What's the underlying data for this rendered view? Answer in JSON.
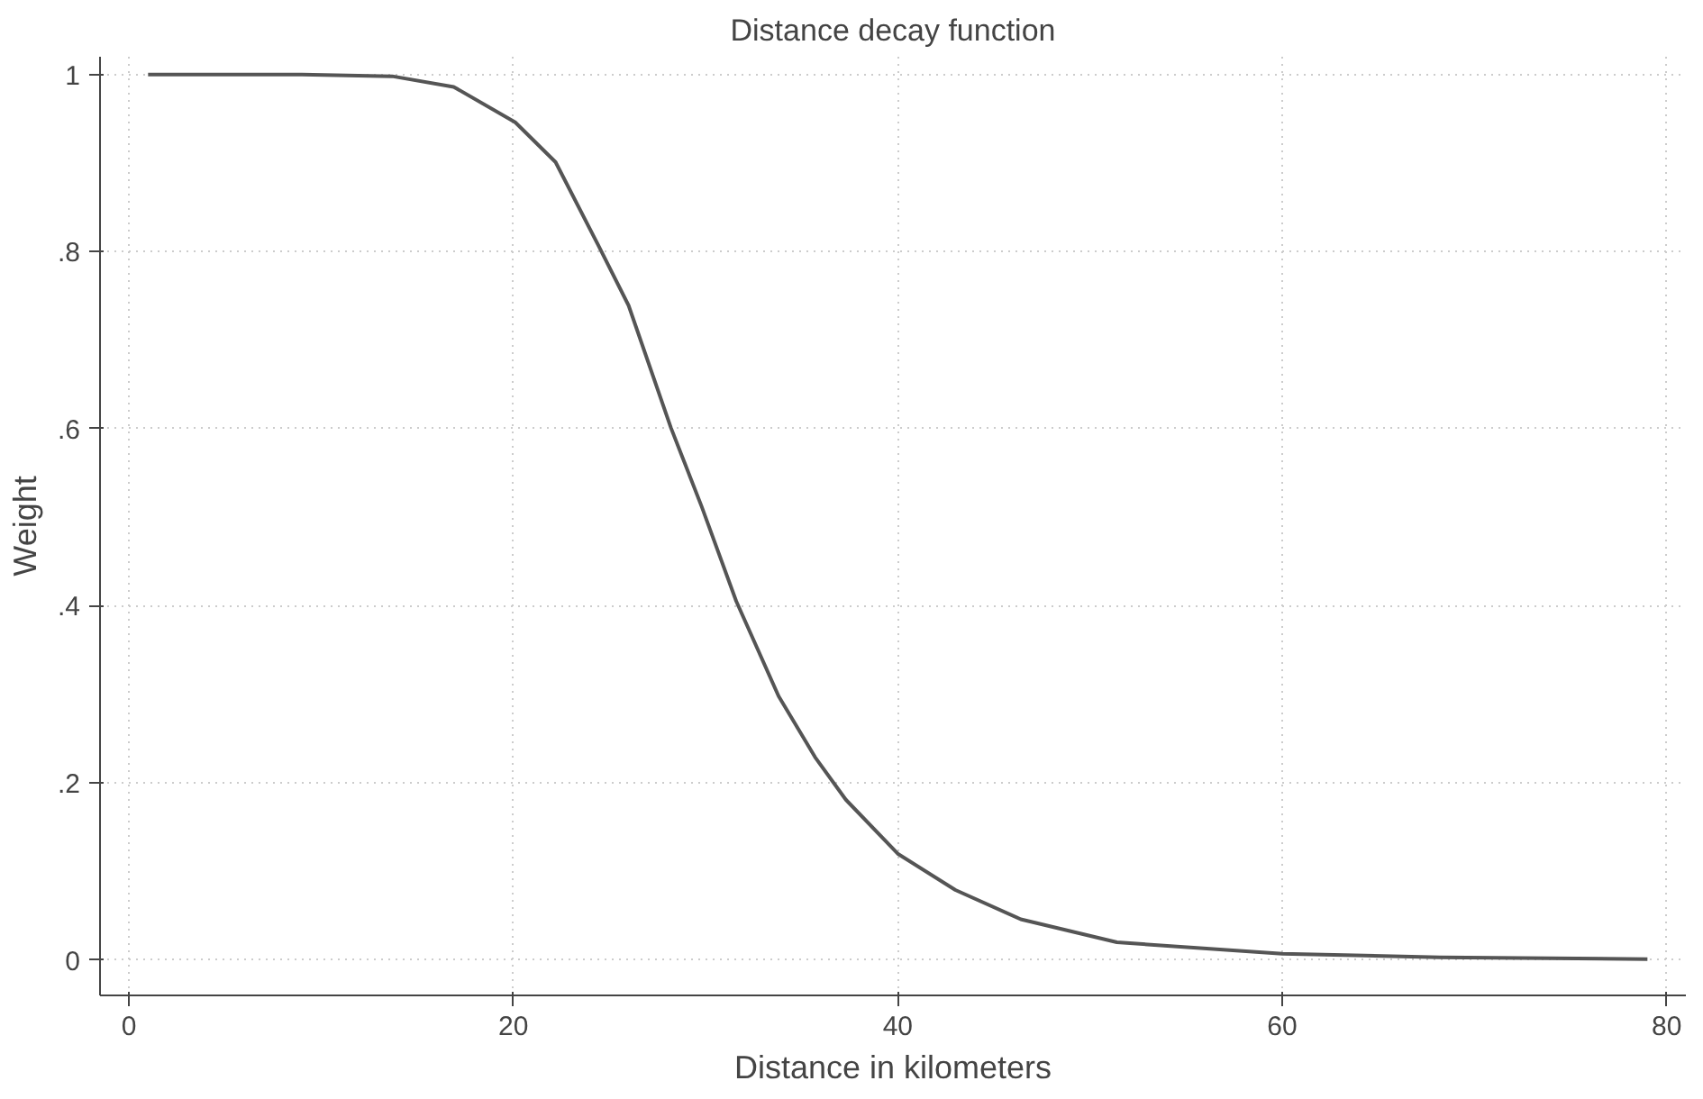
{
  "chart_data": {
    "type": "line",
    "title": "Distance decay function",
    "xlabel": "Distance in kilometers",
    "ylabel": "Weight",
    "series": [
      {
        "color": "#555555",
        "x": [
          1,
          9,
          13.7,
          16.9,
          20.1,
          22.2,
          24.4,
          26.0,
          28.2,
          29.8,
          31.6,
          33.8,
          35.7,
          37.3,
          40.0,
          43.0,
          46.4,
          51.4,
          60.0,
          68.2,
          79.0
        ],
        "values": [
          1.0,
          1.0,
          0.998,
          0.986,
          0.946,
          0.901,
          0.808,
          0.739,
          0.601,
          0.512,
          0.405,
          0.298,
          0.229,
          0.181,
          0.12,
          0.079,
          0.046,
          0.02,
          0.007,
          0.003,
          0.001
        ]
      }
    ],
    "xlim": [
      -1.5,
      81
    ],
    "ylim": [
      -0.04,
      1.02
    ],
    "xticks": [
      0,
      20,
      40,
      60,
      80
    ],
    "yticks": [
      0,
      {
        "value": 0.2,
        "label": ".2"
      },
      {
        "value": 0.4,
        "label": ".4"
      },
      {
        "value": 0.6,
        "label": ".6"
      },
      {
        "value": 0.8,
        "label": ".8"
      },
      1
    ],
    "grid": true,
    "marker": "none",
    "line_style": "solid"
  }
}
